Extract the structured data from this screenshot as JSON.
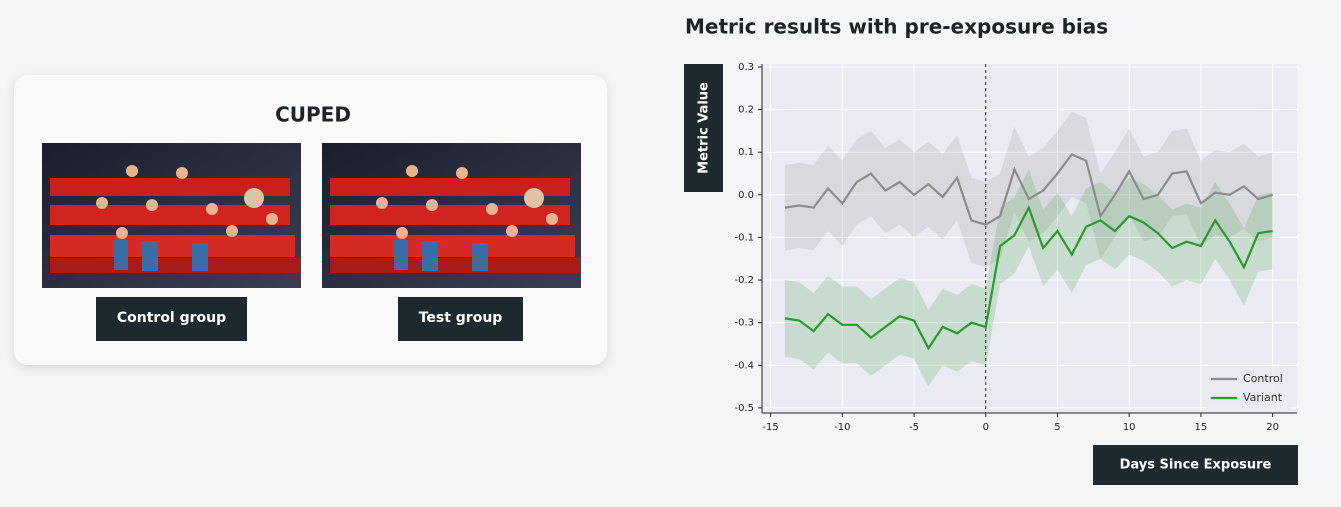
{
  "card": {
    "title": "CUPED",
    "labels": [
      "Control group",
      "Test group"
    ]
  },
  "chart_data": {
    "type": "line",
    "title": "Metric results with pre-exposure bias",
    "x_label": "Days Since Exposure",
    "y_label": "Metric Value",
    "x": [
      -14,
      -13,
      -12,
      -11,
      -10,
      -9,
      -8,
      -7,
      -6,
      -5,
      -4,
      -3,
      -2,
      -1,
      0,
      1,
      2,
      3,
      4,
      5,
      6,
      7,
      8,
      9,
      10,
      11,
      12,
      13,
      14,
      15,
      16,
      17,
      18,
      19,
      20
    ],
    "series": [
      {
        "name": "Control",
        "color": "#8c8c8c",
        "values": [
          -0.03,
          -0.025,
          -0.03,
          0.015,
          -0.02,
          0.03,
          0.05,
          0.01,
          0.03,
          0.0,
          0.025,
          -0.005,
          0.04,
          -0.06,
          -0.07,
          -0.05,
          0.06,
          -0.01,
          0.01,
          0.05,
          0.095,
          0.08,
          -0.05,
          0.0,
          0.055,
          -0.01,
          0.0,
          0.05,
          0.055,
          -0.02,
          0.005,
          0.0,
          0.02,
          -0.01,
          0.0
        ],
        "upper": [
          0.07,
          0.075,
          0.07,
          0.115,
          0.08,
          0.13,
          0.15,
          0.11,
          0.13,
          0.1,
          0.125,
          0.095,
          0.14,
          0.04,
          0.03,
          0.05,
          0.16,
          0.09,
          0.11,
          0.15,
          0.195,
          0.18,
          0.05,
          0.1,
          0.155,
          0.09,
          0.1,
          0.15,
          0.155,
          0.08,
          0.105,
          0.1,
          0.12,
          0.09,
          0.1
        ],
        "lower": [
          -0.13,
          -0.125,
          -0.13,
          -0.085,
          -0.12,
          -0.07,
          -0.05,
          -0.09,
          -0.07,
          -0.1,
          -0.075,
          -0.105,
          -0.06,
          -0.16,
          -0.17,
          -0.15,
          -0.04,
          -0.11,
          -0.09,
          -0.05,
          -0.005,
          -0.02,
          -0.15,
          -0.1,
          -0.045,
          -0.11,
          -0.1,
          -0.05,
          -0.045,
          -0.12,
          -0.095,
          -0.1,
          -0.08,
          -0.11,
          -0.1
        ]
      },
      {
        "name": "Variant",
        "color": "#2a9a2a",
        "values": [
          -0.29,
          -0.295,
          -0.32,
          -0.28,
          -0.305,
          -0.305,
          -0.335,
          -0.31,
          -0.285,
          -0.295,
          -0.36,
          -0.31,
          -0.325,
          -0.3,
          -0.31,
          -0.12,
          -0.095,
          -0.03,
          -0.125,
          -0.085,
          -0.14,
          -0.075,
          -0.06,
          -0.085,
          -0.05,
          -0.065,
          -0.09,
          -0.125,
          -0.11,
          -0.12,
          -0.06,
          -0.11,
          -0.17,
          -0.09,
          -0.085
        ],
        "upper": [
          -0.2,
          -0.205,
          -0.23,
          -0.19,
          -0.215,
          -0.215,
          -0.245,
          -0.22,
          -0.195,
          -0.205,
          -0.27,
          -0.22,
          -0.235,
          -0.21,
          -0.22,
          -0.03,
          -0.005,
          0.06,
          -0.035,
          0.005,
          -0.05,
          0.015,
          0.03,
          0.005,
          0.04,
          0.025,
          0.0,
          -0.035,
          -0.02,
          -0.03,
          0.03,
          -0.02,
          -0.08,
          0.0,
          0.005
        ],
        "lower": [
          -0.38,
          -0.385,
          -0.41,
          -0.37,
          -0.395,
          -0.395,
          -0.425,
          -0.4,
          -0.375,
          -0.385,
          -0.45,
          -0.4,
          -0.415,
          -0.39,
          -0.4,
          -0.21,
          -0.185,
          -0.12,
          -0.215,
          -0.175,
          -0.23,
          -0.165,
          -0.15,
          -0.175,
          -0.14,
          -0.155,
          -0.18,
          -0.215,
          -0.2,
          -0.21,
          -0.15,
          -0.2,
          -0.26,
          -0.18,
          -0.175
        ]
      }
    ],
    "reference_x": 0,
    "xlim": [
      -15.6,
      21.7
    ],
    "xticks": [
      -15,
      -10,
      -5,
      0,
      5,
      10,
      15,
      20
    ],
    "ylim": [
      -0.512,
      0.307
    ],
    "yticks": [
      -0.5,
      -0.4,
      -0.3,
      -0.2,
      -0.1,
      {
        "value": 0,
        "label": "0.0"
      },
      0.1,
      0.2,
      0.3
    ],
    "grid": true,
    "legend": "lower right"
  }
}
